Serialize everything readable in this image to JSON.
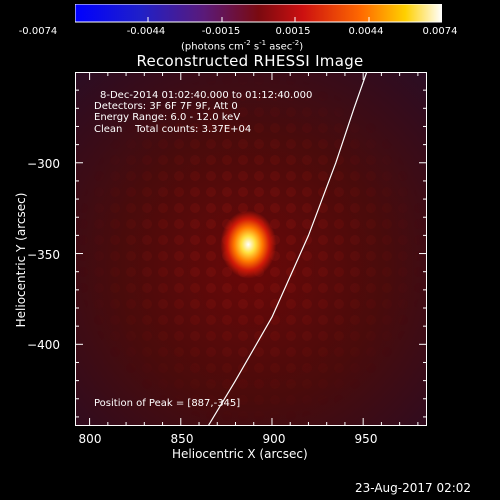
{
  "colorbar": {
    "ticks": [
      "-0.0074",
      "-0.0044",
      "-0.0015",
      "0.0015",
      "0.0044",
      "0.0074"
    ],
    "units": "(photons cm",
    "units_sup1": "-2",
    "units_mid1": " s",
    "units_sup2": "-1",
    "units_mid2": " asec",
    "units_sup3": "-2",
    "units_end": ")",
    "min": -0.0074,
    "max": 0.0074
  },
  "chart_data": {
    "type": "heatmap",
    "title": "Reconstructed RHESSI Image",
    "xlabel": "Heliocentric X (arcsec)",
    "ylabel": "Heliocentric Y (arcsec)",
    "xlim": [
      792,
      985
    ],
    "ylim": [
      -445,
      -250
    ],
    "x_ticks": [
      "800",
      "850",
      "900",
      "950"
    ],
    "y_ticks": [
      "−300",
      "−350",
      "−400"
    ],
    "peak": {
      "x": 887,
      "y": -345
    },
    "annotations": {
      "time": "8-Dec-2014 01:02:40.000 to 01:12:40.000",
      "detectors": "Detectors: 3F 6F 7F 9F, Att 0",
      "energy": "Energy Range: 6.0 - 12.0 keV",
      "clean": "Clean    Total counts: 3.37E+04",
      "peak_label": "Position of Peak = [887,-345]"
    },
    "limb_curve": [
      [
        865,
        -445
      ],
      [
        880,
        -420
      ],
      [
        900,
        -385
      ],
      [
        920,
        -340
      ],
      [
        935,
        -300
      ],
      [
        945,
        -270
      ],
      [
        952,
        -250
      ]
    ]
  },
  "footer": {
    "date": "23-Aug-2017 02:02"
  }
}
